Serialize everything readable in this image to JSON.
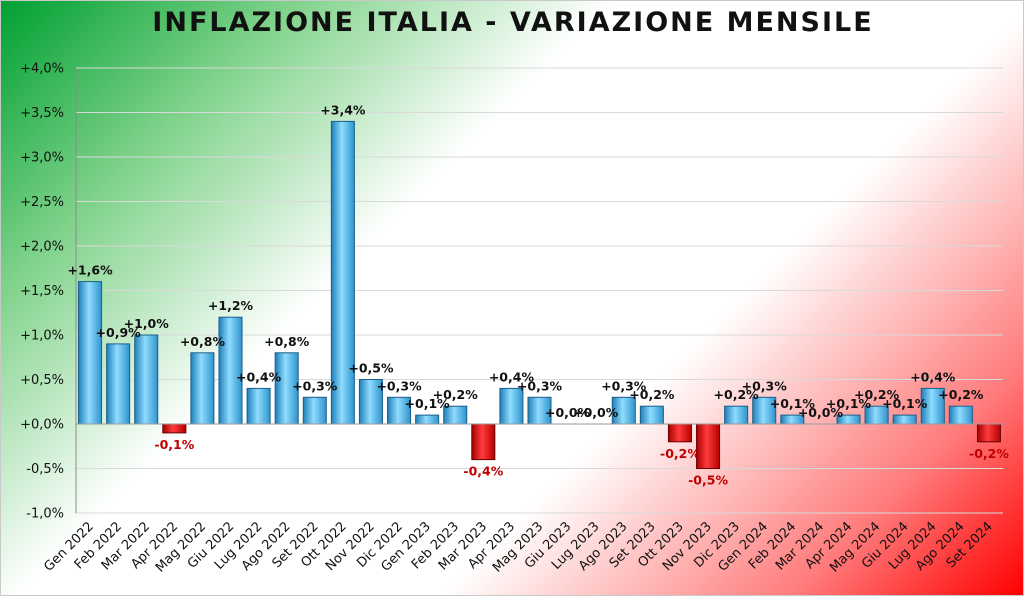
{
  "chart_data": {
    "type": "bar",
    "title": "INFLAZIONE ITALIA - VARIAZIONE MENSILE",
    "xlabel": "",
    "ylabel": "",
    "ylim": [
      -1.0,
      4.0
    ],
    "y_ticks": [
      "+4,0%",
      "+3,5%",
      "+3,0%",
      "+2,5%",
      "+2,0%",
      "+1,5%",
      "+1,0%",
      "+0,5%",
      "+0,0%",
      "-0,5%",
      "-1,0%"
    ],
    "y_tick_values": [
      4.0,
      3.5,
      3.0,
      2.5,
      2.0,
      1.5,
      1.0,
      0.5,
      0.0,
      -0.5,
      -1.0
    ],
    "grid": true,
    "categories": [
      "Gen 2022",
      "Feb 2022",
      "Mar 2022",
      "Apr 2022",
      "Mag 2022",
      "Giu 2022",
      "Lug 2022",
      "Ago 2022",
      "Set 2022",
      "Ott 2022",
      "Nov 2022",
      "Dic 2022",
      "Gen 2023",
      "Feb 2023",
      "Mar 2023",
      "Apr 2023",
      "Mag 2023",
      "Giu 2023",
      "Lug 2023",
      "Ago 2023",
      "Set 2023",
      "Ott 2023",
      "Nov 2023",
      "Dic 2023",
      "Gen 2024",
      "Feb 2024",
      "Mar 2024",
      "Apr 2024",
      "Mag 2024",
      "Giu 2024",
      "Lug 2024",
      "Ago 2024",
      "Set 2024"
    ],
    "values": [
      1.6,
      0.9,
      1.0,
      -0.1,
      0.8,
      1.2,
      0.4,
      0.8,
      0.3,
      3.4,
      0.5,
      0.3,
      0.1,
      0.2,
      -0.4,
      0.4,
      0.3,
      0.0,
      0.0,
      0.3,
      0.2,
      -0.2,
      -0.5,
      0.2,
      0.3,
      0.1,
      0.0,
      0.1,
      0.2,
      0.1,
      0.4,
      0.2,
      -0.2
    ],
    "labels": [
      "+1,6%",
      "+0,9%",
      "+1,0%",
      "-0,1%",
      "+0,8%",
      "+1,2%",
      "+0,4%",
      "+0,8%",
      "+0,3%",
      "+3,4%",
      "+0,5%",
      "+0,3%",
      "+0,1%",
      "+0,2%",
      "-0,4%",
      "+0,4%",
      "+0,3%",
      "+0,0%",
      "+0,0%",
      "+0,3%",
      "+0,2%",
      "-0,2%",
      "-0,5%",
      "+0,2%",
      "+0,3%",
      "+0,1%",
      "+0,0%",
      "+0,1%",
      "+0,2%",
      "+0,1%",
      "+0,4%",
      "+0,2%",
      "-0,2%"
    ],
    "colors": {
      "positive_bar": "#3aa9dd",
      "positive_bar_light": "#bfe9fb",
      "negative_bar": "#d40000",
      "negative_bar_light": "#ff6b6b",
      "positive_label": "#111111",
      "negative_label": "#c00000",
      "gridline": "#d9d9d9",
      "gradient_red": "#ff0000",
      "gradient_green": "#00a032"
    }
  }
}
